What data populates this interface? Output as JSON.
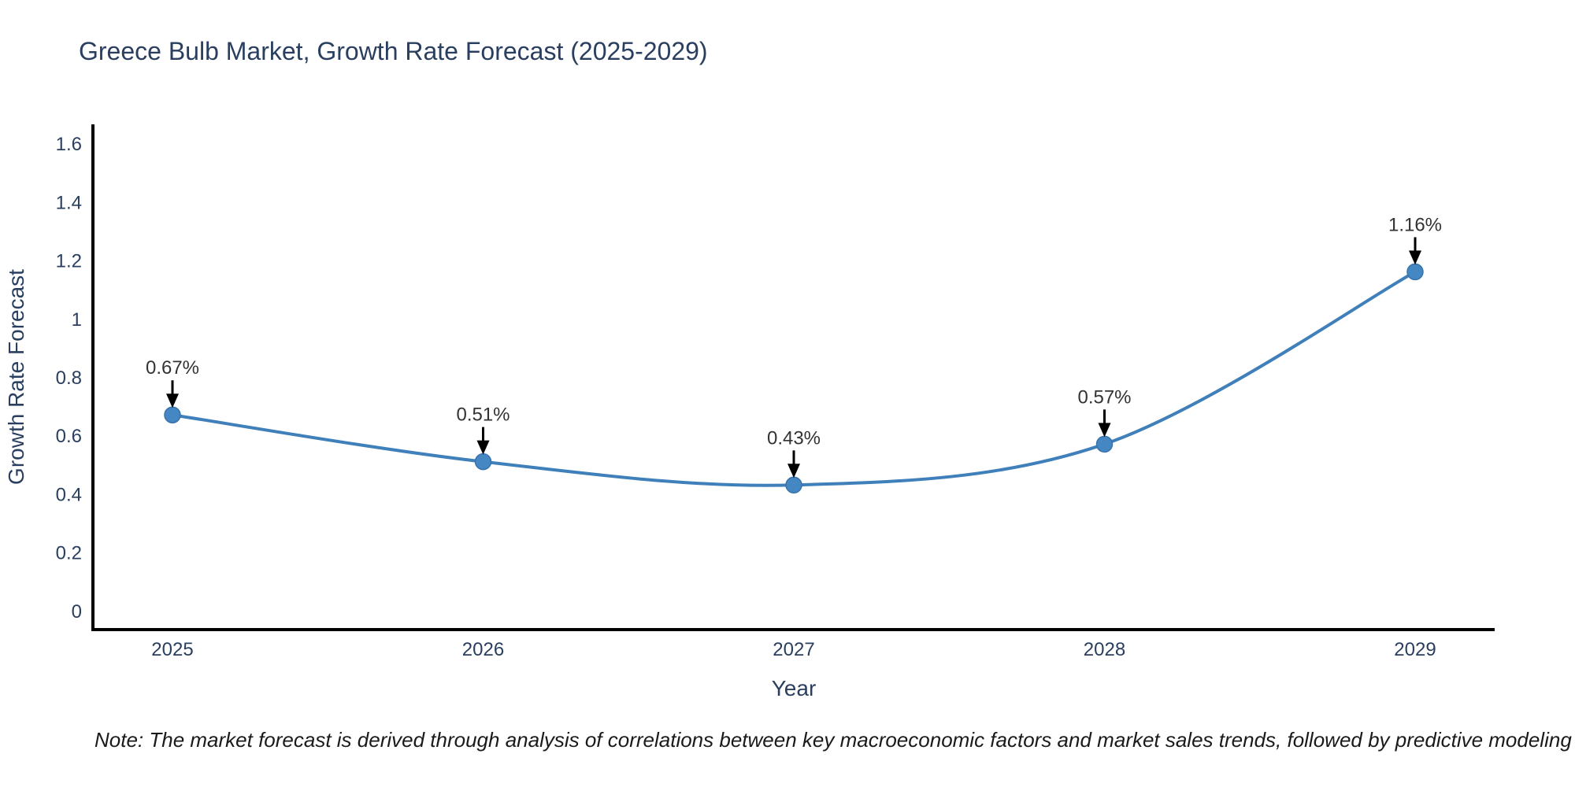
{
  "page": {
    "title": "Greece Bulb Market, Growth Rate Forecast (2025-2029)",
    "note": "Note: The market forecast is derived through analysis of correlations between key macroeconomic factors and market sales trends, followed by predictive modeling to project future sales"
  },
  "chart_data": {
    "type": "line",
    "title": "Greece Bulb Market, Growth Rate Forecast (2025-2029)",
    "xlabel": "Year",
    "ylabel": "Growth Rate Forecast",
    "categories": [
      "2025",
      "2026",
      "2027",
      "2028",
      "2029"
    ],
    "values": [
      0.67,
      0.51,
      0.43,
      0.57,
      1.16
    ],
    "point_labels": [
      "0.67%",
      "0.51%",
      "0.43%",
      "0.57%",
      "1.16%"
    ],
    "yticks": [
      0,
      0.2,
      0.4,
      0.6,
      0.8,
      1,
      1.2,
      1.4,
      1.6
    ],
    "ytick_labels": [
      "0",
      "0.2",
      "0.4",
      "0.6",
      "0.8",
      "1",
      "1.2",
      "1.4",
      "1.6"
    ],
    "ylim": [
      -0.065,
      1.665
    ],
    "grid": false,
    "legend": "none",
    "line_shape": "spline",
    "annotations": "value labels with down arrows above each point",
    "colors": {
      "line": "#3f7fba",
      "marker_fill": "#4587c2",
      "marker_edge": "#3873ab",
      "axis_line": "#000000",
      "axis_text": "#2a3f5f",
      "annotation_text": "#333333",
      "arrow": "#000000",
      "background": "#ffffff"
    }
  }
}
